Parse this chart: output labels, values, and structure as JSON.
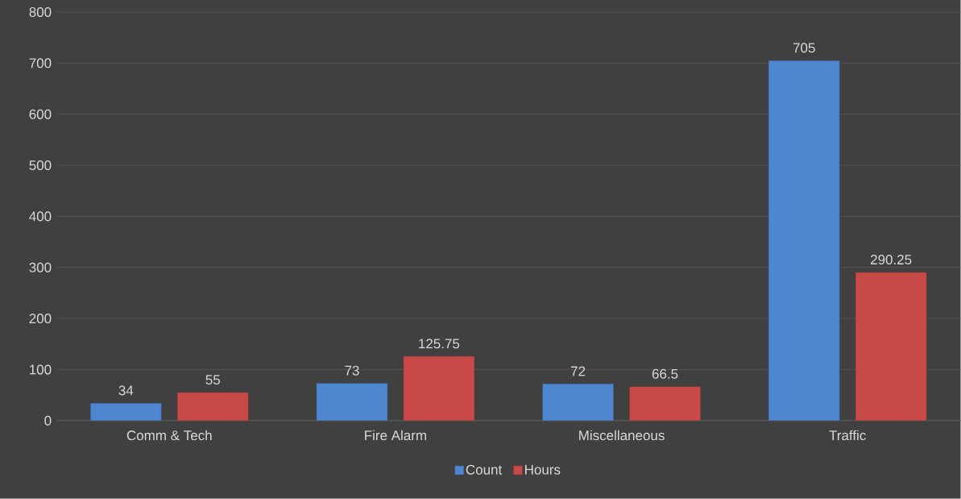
{
  "chart_data": {
    "type": "bar",
    "categories": [
      "Comm & Tech",
      "Fire Alarm",
      "Miscellaneous",
      "Traffic"
    ],
    "series": [
      {
        "name": "Count",
        "color": "#4f86d0",
        "values": [
          34,
          73,
          72,
          705
        ]
      },
      {
        "name": "Hours",
        "color": "#c84a48",
        "values": [
          55,
          125.75,
          66.5,
          290.25
        ]
      }
    ],
    "ylim": [
      0,
      800
    ],
    "yticks": [
      0,
      100,
      200,
      300,
      400,
      500,
      600,
      700,
      800
    ],
    "grid": "y",
    "legend": "bottom",
    "data_labels": true
  }
}
